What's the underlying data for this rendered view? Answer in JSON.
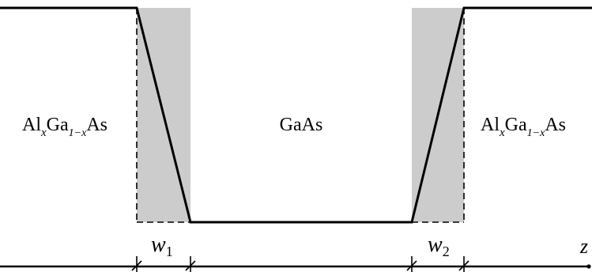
{
  "regions": {
    "left_label": {
      "base": "Al",
      "sub1": "x",
      "mid": "Ga",
      "sub2": "1−x",
      "tail": "As"
    },
    "center_label": "GaAs",
    "right_label": {
      "base": "Al",
      "sub1": "x",
      "mid": "Ga",
      "sub2": "1−x",
      "tail": "As"
    }
  },
  "widths": {
    "w1": {
      "letter": "w",
      "sub": "1"
    },
    "w2": {
      "letter": "w",
      "sub": "2"
    }
  },
  "axis": {
    "label": "z"
  },
  "colors": {
    "line": "#000000",
    "interface_fill": "#cccccc",
    "background": "#ffffff"
  }
}
